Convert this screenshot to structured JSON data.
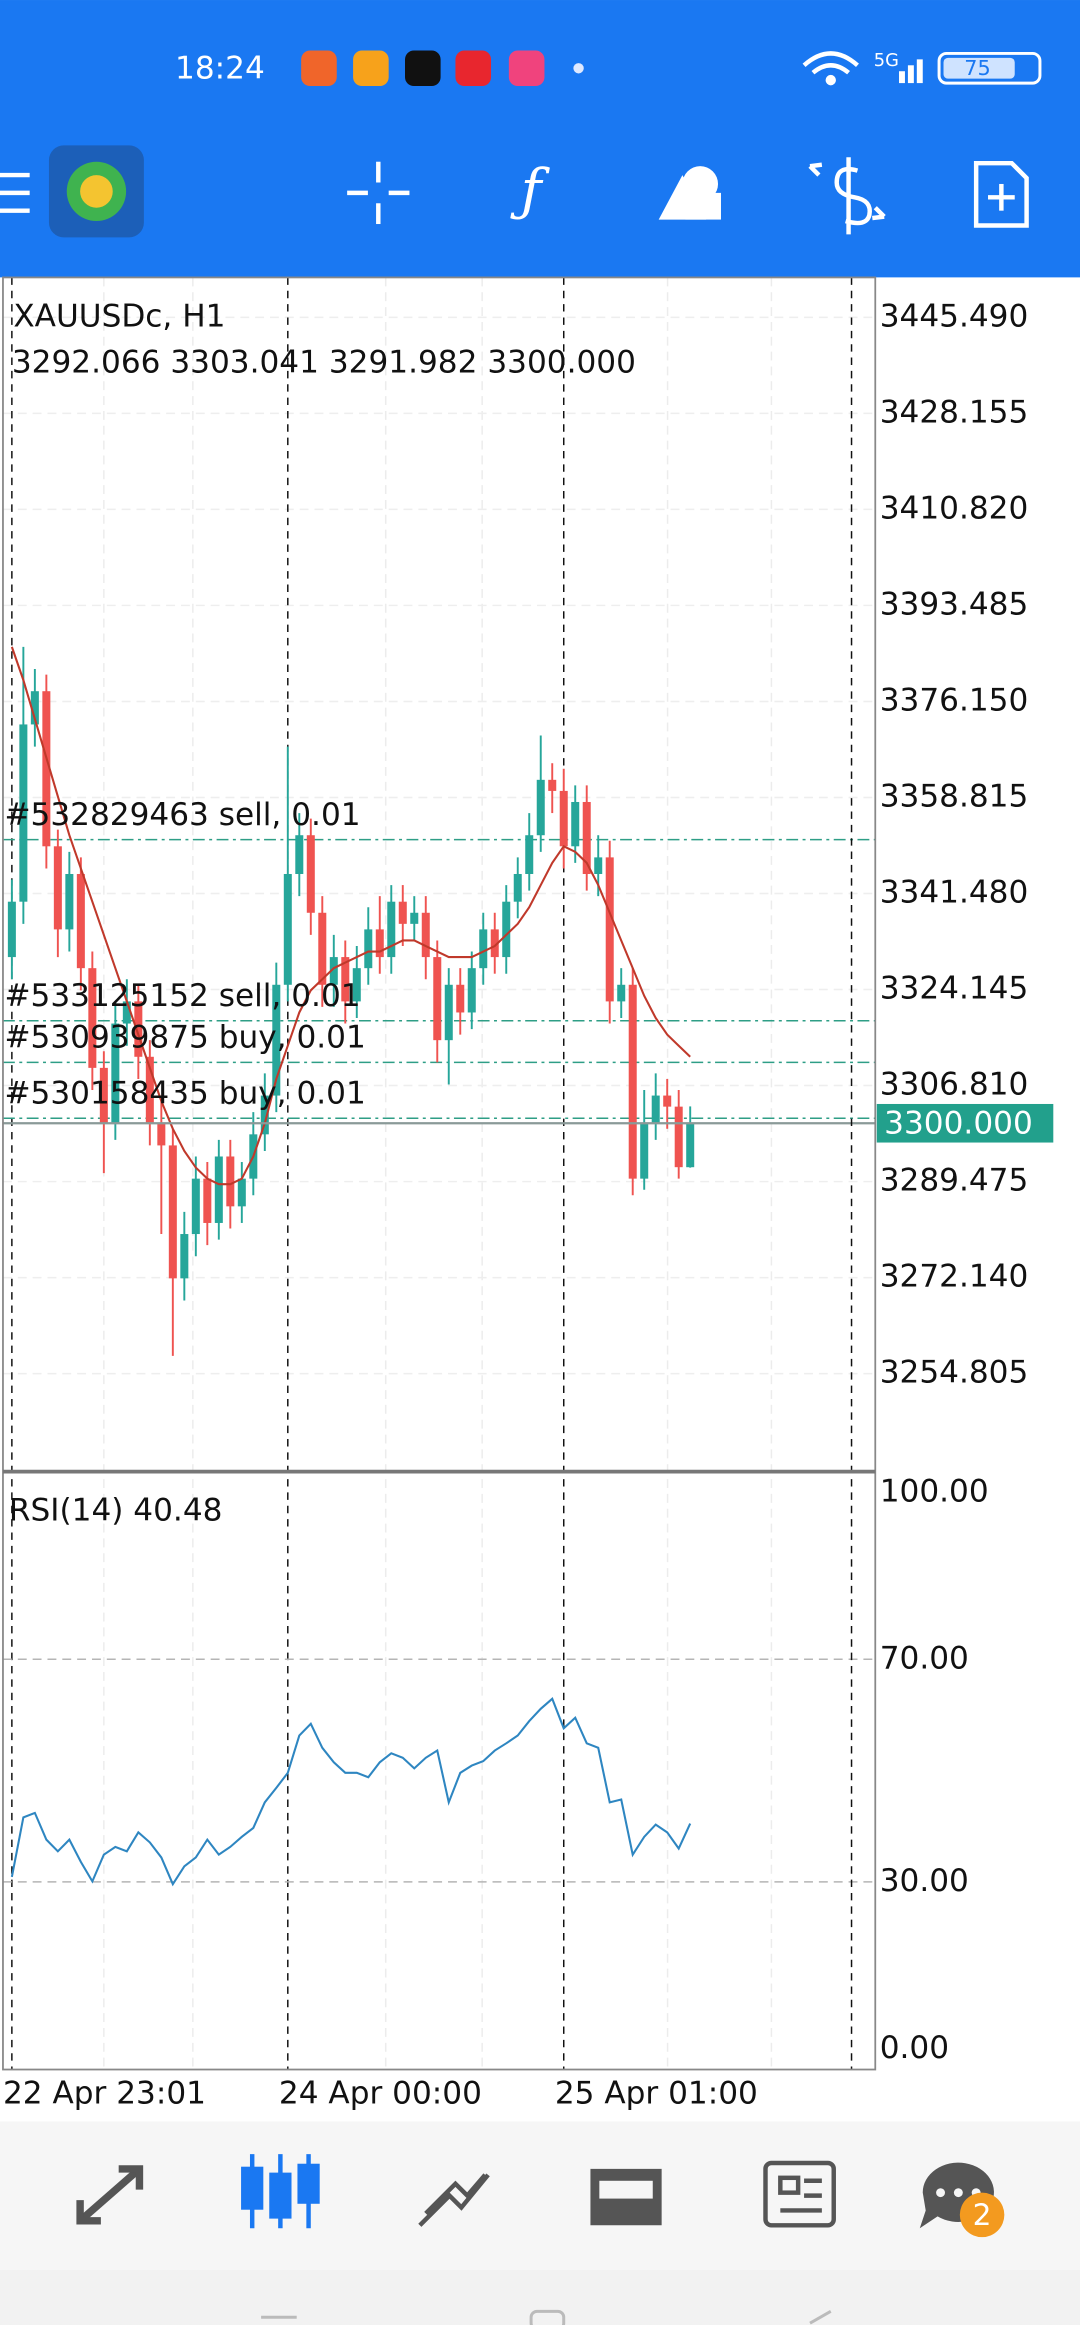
{
  "status_bar": {
    "time": "18:24",
    "network": "5G",
    "battery": "75"
  },
  "nav_badge": "2",
  "chart_data": [
    {
      "type": "candlestick",
      "title": "XAUUSDc, H1",
      "subtitle": "3292.066 3303.041 3291.982 3300.000",
      "up_color": "#26a69a",
      "down_color": "#ef5350",
      "grid": true,
      "categories": [
        "22 Apr 23:01",
        null,
        null,
        null,
        null,
        null,
        null,
        null,
        null,
        null,
        null,
        null,
        null,
        null,
        null,
        null,
        null,
        null,
        null,
        null,
        null,
        null,
        null,
        null,
        "24 Apr 00:00",
        null,
        null,
        null,
        null,
        null,
        null,
        null,
        null,
        null,
        null,
        null,
        null,
        null,
        null,
        null,
        null,
        null,
        null,
        null,
        null,
        null,
        null,
        null,
        "25 Apr 01:00",
        null,
        null,
        null,
        null,
        null,
        null,
        null,
        null,
        null,
        null,
        null
      ],
      "open": [
        3330,
        3340,
        3372,
        3378,
        3350,
        3335,
        3345,
        3328,
        3310,
        3300,
        3318,
        3322,
        3312,
        3300,
        3296,
        3272,
        3280,
        3290,
        3282,
        3294,
        3285,
        3290,
        3298,
        3305,
        3325,
        3345,
        3352,
        3338,
        3325,
        3330,
        3322,
        3328,
        3335,
        3330,
        3340,
        3336,
        3338,
        3330,
        3315,
        3325,
        3320,
        3328,
        3335,
        3330,
        3340,
        3345,
        3352,
        3362,
        3360,
        3350,
        3358,
        3345,
        3348,
        3322,
        3325,
        3290,
        3300,
        3305,
        3303,
        3292.066
      ],
      "high": [
        3344,
        3386,
        3382,
        3381,
        3353,
        3349,
        3348,
        3331,
        3313,
        3322,
        3326,
        3325,
        3315,
        3304,
        3299,
        3284,
        3294,
        3293,
        3297,
        3297,
        3293,
        3302,
        3309,
        3329,
        3368,
        3356,
        3355,
        3341,
        3334,
        3333,
        3332,
        3339,
        3341,
        3343,
        3343,
        3341,
        3341,
        3333,
        3328,
        3328,
        3331,
        3338,
        3338,
        3343,
        3348,
        3356,
        3370,
        3365,
        3364,
        3361,
        3361,
        3352,
        3351,
        3328,
        3328,
        3306,
        3309,
        3308,
        3306,
        3303.041
      ],
      "low": [
        3326,
        3336,
        3368,
        3346,
        3330,
        3331,
        3324,
        3306,
        3291,
        3297,
        3314,
        3308,
        3296,
        3280,
        3258,
        3268,
        3276,
        3278,
        3279,
        3281,
        3282,
        3287,
        3295,
        3302,
        3322,
        3341,
        3334,
        3321,
        3321,
        3318,
        3319,
        3325,
        3327,
        3327,
        3332,
        3333,
        3326,
        3311,
        3307,
        3316,
        3317,
        3325,
        3327,
        3327,
        3337,
        3342,
        3349,
        3356,
        3346,
        3347,
        3342,
        3341,
        3318,
        3319,
        3287,
        3288,
        3297,
        3299,
        3290,
        3291.982
      ],
      "close": [
        3340,
        3372,
        3378,
        3350,
        3335,
        3345,
        3328,
        3310,
        3300,
        3318,
        3322,
        3312,
        3300,
        3296,
        3272,
        3280,
        3290,
        3282,
        3294,
        3285,
        3290,
        3298,
        3305,
        3325,
        3345,
        3352,
        3338,
        3325,
        3330,
        3322,
        3328,
        3335,
        3330,
        3340,
        3336,
        3338,
        3330,
        3315,
        3325,
        3320,
        3328,
        3335,
        3330,
        3340,
        3345,
        3352,
        3362,
        3360,
        3350,
        3358,
        3345,
        3348,
        3322,
        3325,
        3290,
        3300,
        3305,
        3303,
        3292.07,
        3300
      ],
      "series": [
        {
          "color": "#c0392b",
          "values": [
            3386,
            3380,
            3373,
            3366,
            3359,
            3352,
            3346,
            3340,
            3334,
            3328,
            3322,
            3316,
            3310,
            3304,
            3299,
            3295,
            3292,
            3290,
            3289,
            3289,
            3290,
            3294,
            3300,
            3308,
            3314,
            3320,
            3324,
            3326,
            3328,
            3329,
            3330,
            3331,
            3331,
            3332,
            3333,
            3333,
            3332,
            3331,
            3330,
            3330,
            3330,
            3331,
            3332,
            3334,
            3336,
            3339,
            3343,
            3347,
            3350,
            3349,
            3347,
            3343,
            3338,
            3333,
            3328,
            3323,
            3319,
            3316,
            3314,
            3312
          ]
        }
      ],
      "orders": [
        {
          "label": "#532829463 sell, 0.01",
          "price": 3351.2
        },
        {
          "label": "#533125152 sell, 0.01",
          "price": 3318.5
        },
        {
          "label": "#530939875 buy, 0.01",
          "price": 3311.0
        },
        {
          "label": "#530158435 buy, 0.01",
          "price": 3300.9
        }
      ],
      "order_color": "#2e9e86",
      "last_price": {
        "value": 3300,
        "label": "3300.000"
      },
      "last_price_color": "#22a08c",
      "ylim": [
        3237.1,
        3452.7
      ],
      "yticks": [
        {
          "value": 3445.49,
          "label": "3445.490"
        },
        3428.155,
        {
          "value": 3410.82,
          "label": "3410.820"
        },
        3393.485,
        {
          "value": 3376.15,
          "label": "3376.150"
        },
        3358.815,
        {
          "value": 3341.48,
          "label": "3341.480"
        },
        3324.145,
        {
          "value": 3306.81,
          "label": "3306.810"
        },
        3289.475,
        {
          "value": 3272.14,
          "label": "3272.140"
        },
        3254.805
      ]
    },
    {
      "type": "line",
      "title": "RSI(14) 40.48",
      "color": "#2e86c1",
      "grid": true,
      "values": [
        30.9,
        41.6,
        42.4,
        37.6,
        35.5,
        37.6,
        33.6,
        30.1,
        34.9,
        36.3,
        35.5,
        38.9,
        37.1,
        34.4,
        29.6,
        32.8,
        34.4,
        37.6,
        34.9,
        36.3,
        38.1,
        39.7,
        44.3,
        46.9,
        49.6,
        56.3,
        58.4,
        54.1,
        51.5,
        49.6,
        49.6,
        48.8,
        51.5,
        53.1,
        52.3,
        50.4,
        52.3,
        53.6,
        44.3,
        49.6,
        50.9,
        51.7,
        53.6,
        54.9,
        56.3,
        58.9,
        61.1,
        62.9,
        57.6,
        59.5,
        54.9,
        54.1,
        44.3,
        44.8,
        34.9,
        38.1,
        40.3,
        38.9,
        36.0,
        40.48
      ],
      "ylim": [
        -3.7,
        103.7
      ],
      "yticks": [
        {
          "value": 100,
          "label": "100.00"
        },
        {
          "value": 70,
          "label": "70.00"
        },
        {
          "value": 30,
          "label": "30.00"
        },
        {
          "value": 0,
          "label": "0.00"
        }
      ]
    }
  ]
}
